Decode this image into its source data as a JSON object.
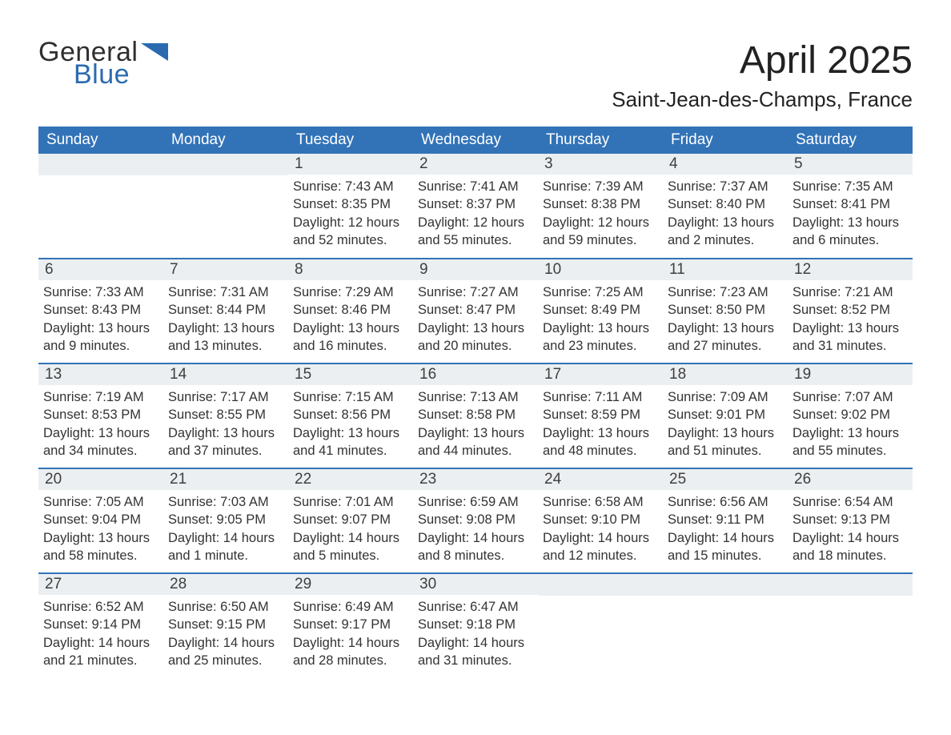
{
  "brand": {
    "word1": "General",
    "word2": "Blue",
    "tri_color": "#2a6bb0"
  },
  "title": "April 2025",
  "location": "Saint-Jean-des-Champs, France",
  "colors": {
    "header_bg": "#3273b8",
    "header_text": "#ffffff",
    "daynum_bg": "#eceff1",
    "week_border": "#3273b8",
    "body_text": "#333333"
  },
  "day_labels": [
    "Sunday",
    "Monday",
    "Tuesday",
    "Wednesday",
    "Thursday",
    "Friday",
    "Saturday"
  ],
  "weeks": [
    [
      null,
      null,
      {
        "n": "1",
        "sunrise": "Sunrise: 7:43 AM",
        "sunset": "Sunset: 8:35 PM",
        "daylight": "Daylight: 12 hours and 52 minutes."
      },
      {
        "n": "2",
        "sunrise": "Sunrise: 7:41 AM",
        "sunset": "Sunset: 8:37 PM",
        "daylight": "Daylight: 12 hours and 55 minutes."
      },
      {
        "n": "3",
        "sunrise": "Sunrise: 7:39 AM",
        "sunset": "Sunset: 8:38 PM",
        "daylight": "Daylight: 12 hours and 59 minutes."
      },
      {
        "n": "4",
        "sunrise": "Sunrise: 7:37 AM",
        "sunset": "Sunset: 8:40 PM",
        "daylight": "Daylight: 13 hours and 2 minutes."
      },
      {
        "n": "5",
        "sunrise": "Sunrise: 7:35 AM",
        "sunset": "Sunset: 8:41 PM",
        "daylight": "Daylight: 13 hours and 6 minutes."
      }
    ],
    [
      {
        "n": "6",
        "sunrise": "Sunrise: 7:33 AM",
        "sunset": "Sunset: 8:43 PM",
        "daylight": "Daylight: 13 hours and 9 minutes."
      },
      {
        "n": "7",
        "sunrise": "Sunrise: 7:31 AM",
        "sunset": "Sunset: 8:44 PM",
        "daylight": "Daylight: 13 hours and 13 minutes."
      },
      {
        "n": "8",
        "sunrise": "Sunrise: 7:29 AM",
        "sunset": "Sunset: 8:46 PM",
        "daylight": "Daylight: 13 hours and 16 minutes."
      },
      {
        "n": "9",
        "sunrise": "Sunrise: 7:27 AM",
        "sunset": "Sunset: 8:47 PM",
        "daylight": "Daylight: 13 hours and 20 minutes."
      },
      {
        "n": "10",
        "sunrise": "Sunrise: 7:25 AM",
        "sunset": "Sunset: 8:49 PM",
        "daylight": "Daylight: 13 hours and 23 minutes."
      },
      {
        "n": "11",
        "sunrise": "Sunrise: 7:23 AM",
        "sunset": "Sunset: 8:50 PM",
        "daylight": "Daylight: 13 hours and 27 minutes."
      },
      {
        "n": "12",
        "sunrise": "Sunrise: 7:21 AM",
        "sunset": "Sunset: 8:52 PM",
        "daylight": "Daylight: 13 hours and 31 minutes."
      }
    ],
    [
      {
        "n": "13",
        "sunrise": "Sunrise: 7:19 AM",
        "sunset": "Sunset: 8:53 PM",
        "daylight": "Daylight: 13 hours and 34 minutes."
      },
      {
        "n": "14",
        "sunrise": "Sunrise: 7:17 AM",
        "sunset": "Sunset: 8:55 PM",
        "daylight": "Daylight: 13 hours and 37 minutes."
      },
      {
        "n": "15",
        "sunrise": "Sunrise: 7:15 AM",
        "sunset": "Sunset: 8:56 PM",
        "daylight": "Daylight: 13 hours and 41 minutes."
      },
      {
        "n": "16",
        "sunrise": "Sunrise: 7:13 AM",
        "sunset": "Sunset: 8:58 PM",
        "daylight": "Daylight: 13 hours and 44 minutes."
      },
      {
        "n": "17",
        "sunrise": "Sunrise: 7:11 AM",
        "sunset": "Sunset: 8:59 PM",
        "daylight": "Daylight: 13 hours and 48 minutes."
      },
      {
        "n": "18",
        "sunrise": "Sunrise: 7:09 AM",
        "sunset": "Sunset: 9:01 PM",
        "daylight": "Daylight: 13 hours and 51 minutes."
      },
      {
        "n": "19",
        "sunrise": "Sunrise: 7:07 AM",
        "sunset": "Sunset: 9:02 PM",
        "daylight": "Daylight: 13 hours and 55 minutes."
      }
    ],
    [
      {
        "n": "20",
        "sunrise": "Sunrise: 7:05 AM",
        "sunset": "Sunset: 9:04 PM",
        "daylight": "Daylight: 13 hours and 58 minutes."
      },
      {
        "n": "21",
        "sunrise": "Sunrise: 7:03 AM",
        "sunset": "Sunset: 9:05 PM",
        "daylight": "Daylight: 14 hours and 1 minute."
      },
      {
        "n": "22",
        "sunrise": "Sunrise: 7:01 AM",
        "sunset": "Sunset: 9:07 PM",
        "daylight": "Daylight: 14 hours and 5 minutes."
      },
      {
        "n": "23",
        "sunrise": "Sunrise: 6:59 AM",
        "sunset": "Sunset: 9:08 PM",
        "daylight": "Daylight: 14 hours and 8 minutes."
      },
      {
        "n": "24",
        "sunrise": "Sunrise: 6:58 AM",
        "sunset": "Sunset: 9:10 PM",
        "daylight": "Daylight: 14 hours and 12 minutes."
      },
      {
        "n": "25",
        "sunrise": "Sunrise: 6:56 AM",
        "sunset": "Sunset: 9:11 PM",
        "daylight": "Daylight: 14 hours and 15 minutes."
      },
      {
        "n": "26",
        "sunrise": "Sunrise: 6:54 AM",
        "sunset": "Sunset: 9:13 PM",
        "daylight": "Daylight: 14 hours and 18 minutes."
      }
    ],
    [
      {
        "n": "27",
        "sunrise": "Sunrise: 6:52 AM",
        "sunset": "Sunset: 9:14 PM",
        "daylight": "Daylight: 14 hours and 21 minutes."
      },
      {
        "n": "28",
        "sunrise": "Sunrise: 6:50 AM",
        "sunset": "Sunset: 9:15 PM",
        "daylight": "Daylight: 14 hours and 25 minutes."
      },
      {
        "n": "29",
        "sunrise": "Sunrise: 6:49 AM",
        "sunset": "Sunset: 9:17 PM",
        "daylight": "Daylight: 14 hours and 28 minutes."
      },
      {
        "n": "30",
        "sunrise": "Sunrise: 6:47 AM",
        "sunset": "Sunset: 9:18 PM",
        "daylight": "Daylight: 14 hours and 31 minutes."
      },
      null,
      null,
      null
    ]
  ]
}
